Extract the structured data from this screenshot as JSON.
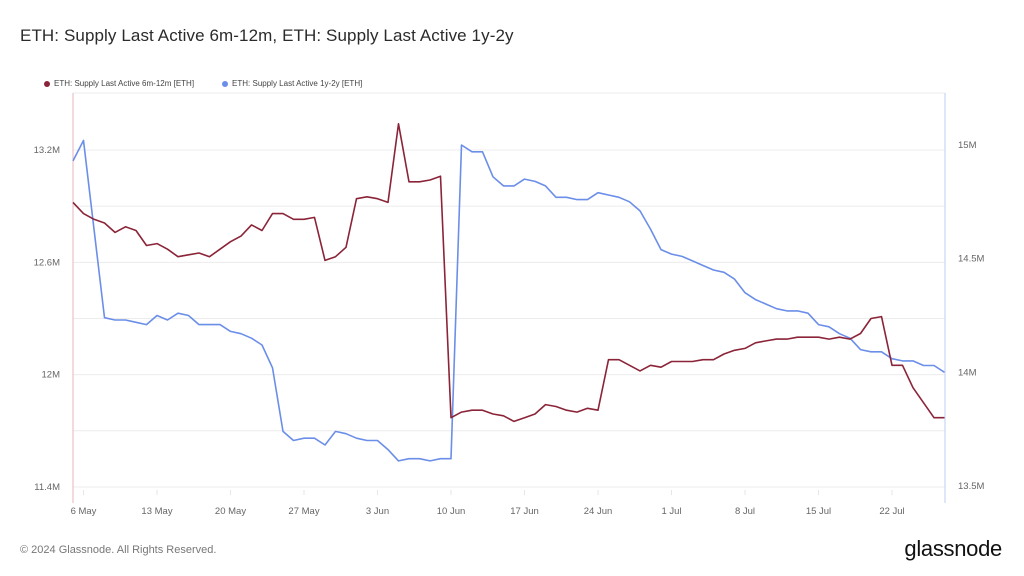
{
  "header": {
    "title": "ETH: Supply Last Active 6m-12m, ETH: Supply Last Active 1y-2y"
  },
  "footer": {
    "copyright": "© 2024 Glassnode. All Rights Reserved.",
    "brand": "glassnode"
  },
  "colors": {
    "series_6m12m": "#8b2438",
    "series_1y2y": "#6b8ee8",
    "grid": "#ececec",
    "left_axis": "#e6b5bf",
    "right_axis": "#c9d6f5"
  },
  "chart_data": {
    "type": "line",
    "title": "ETH: Supply Last Active 6m-12m, ETH: Supply Last Active 1y-2y",
    "xlabel": "",
    "ylabel_left": "ETH: Supply Last Active 6m-12m [ETH]",
    "ylabel_right": "ETH: Supply Last Active 1y-2y [ETH]",
    "legend": [
      "ETH: Supply Last Active 6m-12m [ETH]",
      "ETH: Supply Last Active 1y-2y [ETH]"
    ],
    "legend_position": "top-left",
    "grid": true,
    "x_start": "2024-05-05",
    "x_step_days": 1,
    "x_ticks": [
      "6 May",
      "13 May",
      "20 May",
      "27 May",
      "3 Jun",
      "10 Jun",
      "17 Jun",
      "24 Jun",
      "1 Jul",
      "8 Jul",
      "15 Jul",
      "22 Jul"
    ],
    "y_left": {
      "ticks": [
        "11.4M",
        "12M",
        "12.6M",
        "13.2M"
      ],
      "range": [
        11.4,
        13.6
      ]
    },
    "y_right": {
      "ticks": [
        "13.5M",
        "14M",
        "14.5M",
        "15M"
      ],
      "range": [
        13.5,
        15.25
      ]
    },
    "series": [
      {
        "name": "ETH: Supply Last Active 6m-12m [ETH]",
        "axis": "left",
        "unit": "M",
        "values": [
          12.92,
          12.86,
          12.83,
          12.81,
          12.76,
          12.79,
          12.77,
          12.69,
          12.7,
          12.67,
          12.63,
          12.64,
          12.65,
          12.63,
          12.67,
          12.71,
          12.74,
          12.8,
          12.77,
          12.86,
          12.86,
          12.83,
          12.83,
          12.84,
          12.61,
          12.63,
          12.68,
          12.94,
          12.95,
          12.94,
          12.92,
          13.34,
          13.03,
          13.03,
          13.04,
          13.06,
          11.77,
          11.8,
          11.81,
          11.81,
          11.79,
          11.78,
          11.75,
          11.77,
          11.79,
          11.84,
          11.83,
          11.81,
          11.8,
          11.82,
          11.81,
          12.08,
          12.08,
          12.05,
          12.02,
          12.05,
          12.04,
          12.07,
          12.07,
          12.07,
          12.08,
          12.08,
          12.11,
          12.13,
          12.14,
          12.17,
          12.18,
          12.19,
          12.19,
          12.2,
          12.2,
          12.2,
          12.19,
          12.2,
          12.19,
          12.22,
          12.3,
          12.31,
          12.05,
          12.05,
          11.93,
          11.85,
          11.77,
          11.77
        ]
      },
      {
        "name": "ETH: Supply Last Active 1y-2y [ETH]",
        "axis": "right",
        "unit": "M",
        "values": [
          14.93,
          15.02,
          14.63,
          14.24,
          14.23,
          14.23,
          14.22,
          14.21,
          14.25,
          14.23,
          14.26,
          14.25,
          14.21,
          14.21,
          14.21,
          14.18,
          14.17,
          14.15,
          14.12,
          14.02,
          13.74,
          13.7,
          13.71,
          13.71,
          13.68,
          13.74,
          13.73,
          13.71,
          13.7,
          13.7,
          13.66,
          13.61,
          13.62,
          13.62,
          13.61,
          13.62,
          13.62,
          15.0,
          14.97,
          14.97,
          14.86,
          14.82,
          14.82,
          14.85,
          14.84,
          14.82,
          14.77,
          14.77,
          14.76,
          14.76,
          14.79,
          14.78,
          14.77,
          14.75,
          14.71,
          14.63,
          14.54,
          14.52,
          14.51,
          14.49,
          14.47,
          14.45,
          14.44,
          14.41,
          14.35,
          14.32,
          14.3,
          14.28,
          14.27,
          14.27,
          14.26,
          14.21,
          14.2,
          14.17,
          14.15,
          14.1,
          14.09,
          14.09,
          14.06,
          14.05,
          14.05,
          14.03,
          14.03,
          14.0
        ]
      }
    ]
  }
}
